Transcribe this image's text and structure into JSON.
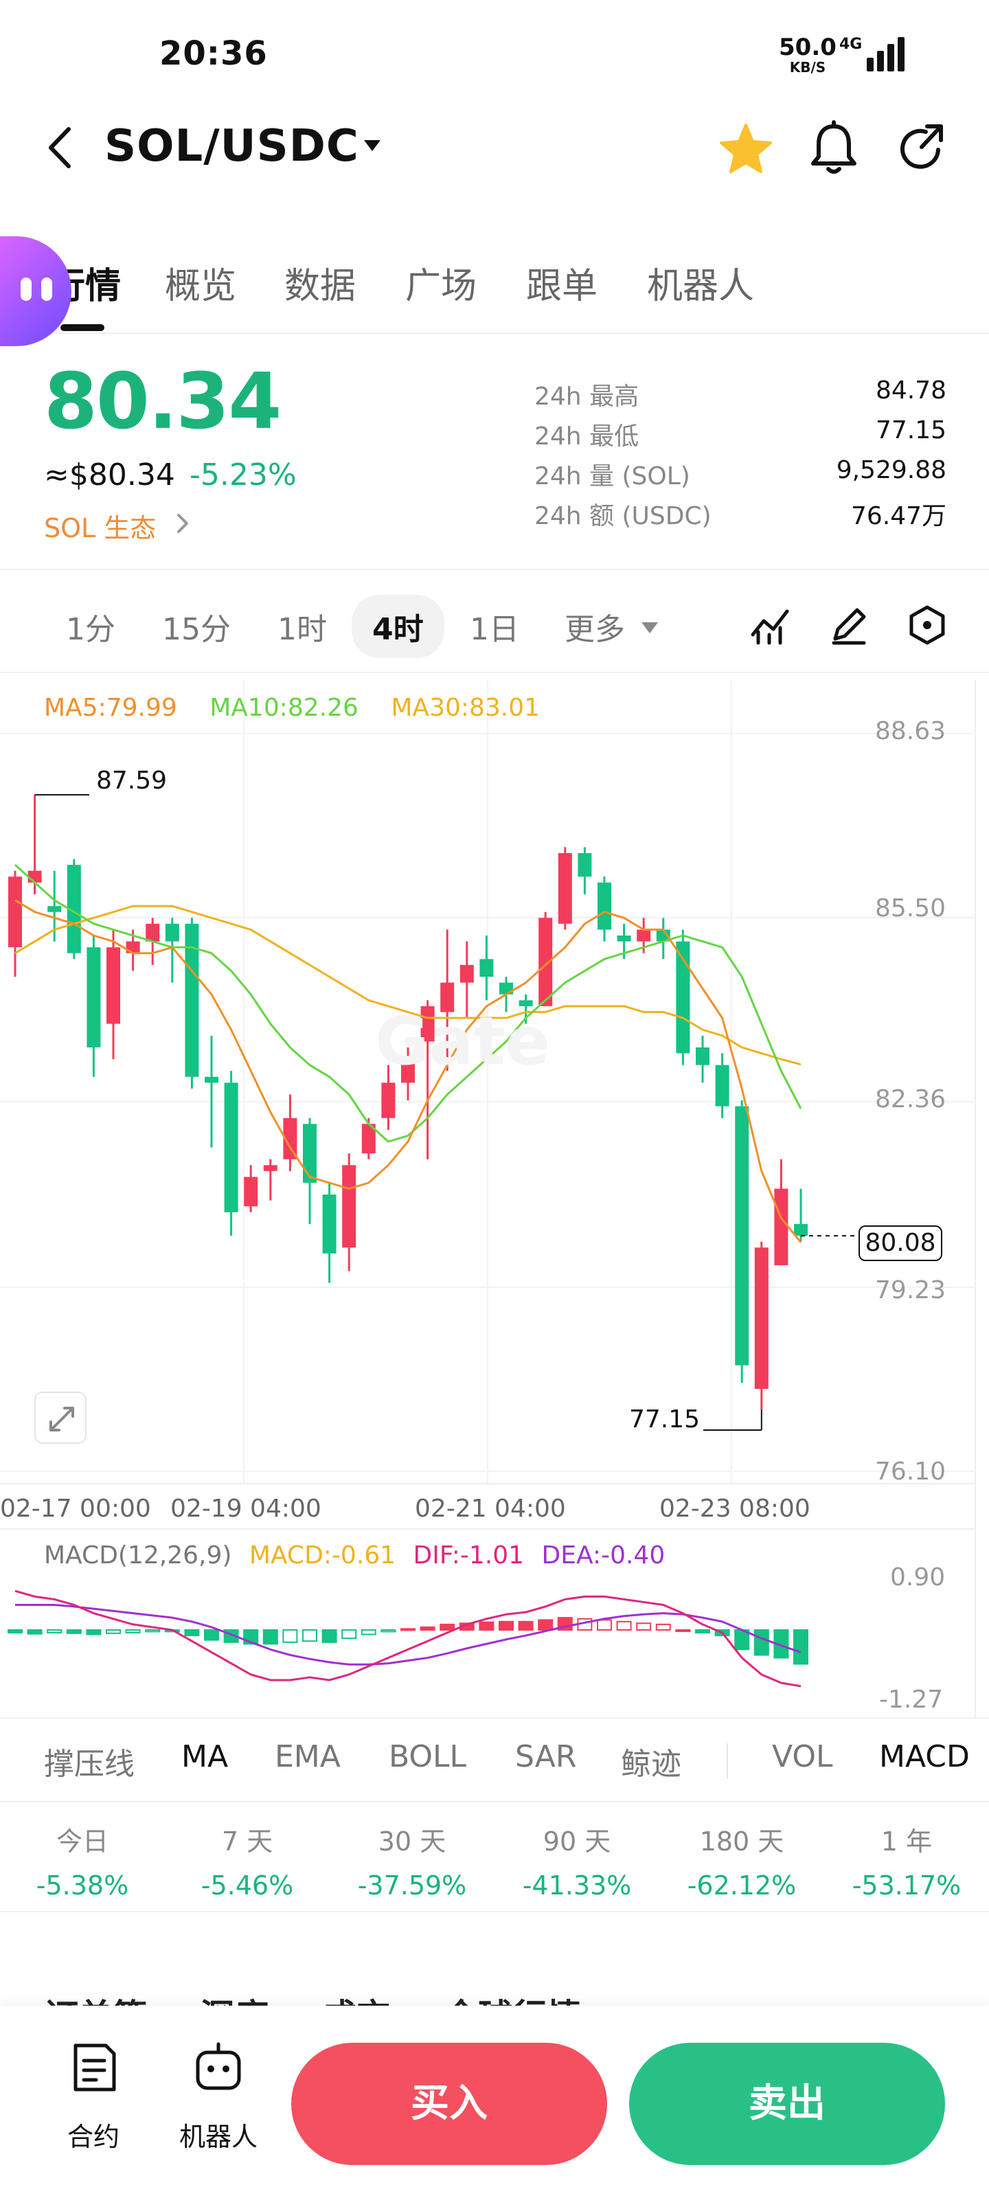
{
  "status": {
    "time": "20:36",
    "speed": "50.0",
    "speed_unit": "KB/S",
    "network": "4G"
  },
  "header": {
    "pair": "SOL/USDC",
    "favorited": true
  },
  "tabs": [
    "行情",
    "概览",
    "数据",
    "广场",
    "跟单",
    "机器人"
  ],
  "price": {
    "last": "80.34",
    "usd": "≈$80.34",
    "change": "-5.23%",
    "eco_link": "SOL 生态",
    "stats": [
      {
        "label": "24h  最高",
        "value": "84.78"
      },
      {
        "label": "24h  最低",
        "value": "77.15"
      },
      {
        "label": "24h  量 (SOL)",
        "value": "9,529.88"
      },
      {
        "label": "24h  额 (USDC)",
        "value": "76.47万"
      }
    ]
  },
  "timeframes": [
    "1分",
    "15分",
    "1时",
    "4时",
    "1日",
    "更多"
  ],
  "active_timeframe": "4时",
  "chart_legend": {
    "ma5": "MA5:79.99",
    "ma10": "MA10:82.26",
    "ma30": "MA30:83.01"
  },
  "macd_legend": {
    "params": "MACD(12,26,9)",
    "macd": "MACD:-0.61",
    "dif": "DIF:-1.01",
    "dea": "DEA:-0.40"
  },
  "current_price_tag": "80.08",
  "high_label": "87.59",
  "low_label": "77.15",
  "watermark": "Gate",
  "chart_data": {
    "type": "candlestick",
    "y_axis": [
      "88.63",
      "85.50",
      "82.36",
      "79.23",
      "76.10"
    ],
    "x_axis": [
      "02-17 00:00",
      "02-19 04:00",
      "02-21 04:00",
      "02-23 08:00"
    ],
    "macd_axis": [
      "0.90",
      "-1.27"
    ],
    "candles": [
      {
        "o": 85.0,
        "c": 86.2,
        "h": 86.3,
        "l": 84.5
      },
      {
        "o": 86.1,
        "c": 86.3,
        "h": 87.59,
        "l": 85.9
      },
      {
        "o": 85.7,
        "c": 85.6,
        "h": 86.3,
        "l": 85.1
      },
      {
        "o": 86.4,
        "c": 84.9,
        "h": 86.5,
        "l": 84.8
      },
      {
        "o": 85.0,
        "c": 83.3,
        "h": 85.2,
        "l": 82.8
      },
      {
        "o": 83.7,
        "c": 85.0,
        "h": 85.3,
        "l": 83.1
      },
      {
        "o": 84.9,
        "c": 85.1,
        "h": 85.3,
        "l": 84.6
      },
      {
        "o": 85.1,
        "c": 85.4,
        "h": 85.5,
        "l": 84.7
      },
      {
        "o": 85.4,
        "c": 85.1,
        "h": 85.5,
        "l": 84.4
      },
      {
        "o": 85.4,
        "c": 82.8,
        "h": 85.5,
        "l": 82.6
      },
      {
        "o": 82.8,
        "c": 82.7,
        "h": 83.5,
        "l": 81.6
      },
      {
        "o": 82.7,
        "c": 80.5,
        "h": 82.9,
        "l": 80.1
      },
      {
        "o": 80.6,
        "c": 81.1,
        "h": 81.3,
        "l": 80.5
      },
      {
        "o": 81.2,
        "c": 81.3,
        "h": 81.4,
        "l": 80.7
      },
      {
        "o": 81.4,
        "c": 82.1,
        "h": 82.5,
        "l": 81.2
      },
      {
        "o": 82.0,
        "c": 81.0,
        "h": 82.1,
        "l": 80.3
      },
      {
        "o": 80.8,
        "c": 79.8,
        "h": 81.0,
        "l": 79.3
      },
      {
        "o": 79.9,
        "c": 81.3,
        "h": 81.5,
        "l": 79.5
      },
      {
        "o": 81.5,
        "c": 82.0,
        "h": 82.1,
        "l": 81.4
      },
      {
        "o": 82.1,
        "c": 82.7,
        "h": 83.0,
        "l": 81.9
      },
      {
        "o": 82.7,
        "c": 83.1,
        "h": 83.3,
        "l": 82.4
      },
      {
        "o": 83.4,
        "c": 84.0,
        "h": 84.1,
        "l": 81.4
      },
      {
        "o": 83.9,
        "c": 84.4,
        "h": 85.3,
        "l": 82.9
      },
      {
        "o": 84.4,
        "c": 84.7,
        "h": 85.1,
        "l": 83.8
      },
      {
        "o": 84.8,
        "c": 84.5,
        "h": 85.2,
        "l": 84.1
      },
      {
        "o": 84.4,
        "c": 84.2,
        "h": 84.5,
        "l": 83.9
      },
      {
        "o": 84.1,
        "c": 84.0,
        "h": 84.2,
        "l": 83.7
      },
      {
        "o": 84.0,
        "c": 85.5,
        "h": 85.6,
        "l": 84.0
      },
      {
        "o": 85.4,
        "c": 86.6,
        "h": 86.7,
        "l": 85.3
      },
      {
        "o": 86.6,
        "c": 86.2,
        "h": 86.7,
        "l": 85.9
      },
      {
        "o": 86.1,
        "c": 85.3,
        "h": 86.2,
        "l": 85.1
      },
      {
        "o": 85.2,
        "c": 85.1,
        "h": 85.4,
        "l": 84.8
      },
      {
        "o": 85.1,
        "c": 85.3,
        "h": 85.5,
        "l": 84.9
      },
      {
        "o": 85.3,
        "c": 85.1,
        "h": 85.5,
        "l": 84.8
      },
      {
        "o": 85.1,
        "c": 83.2,
        "h": 85.3,
        "l": 83.0
      },
      {
        "o": 83.3,
        "c": 83.0,
        "h": 83.5,
        "l": 82.7
      },
      {
        "o": 83.0,
        "c": 82.3,
        "h": 83.2,
        "l": 82.1
      },
      {
        "o": 82.3,
        "c": 77.9,
        "h": 82.4,
        "l": 77.6
      },
      {
        "o": 77.5,
        "c": 79.9,
        "h": 80.0,
        "l": 77.15
      },
      {
        "o": 79.6,
        "c": 80.9,
        "h": 81.4,
        "l": 79.6
      },
      {
        "o": 80.3,
        "c": 80.1,
        "h": 80.9,
        "l": 80.0
      }
    ],
    "ma5": [
      85.8,
      85.6,
      85.5,
      85.4,
      85.2,
      85.1,
      84.9,
      84.9,
      85.0,
      84.6,
      84.2,
      83.6,
      82.9,
      82.2,
      81.6,
      81.1,
      81.0,
      80.9,
      81.0,
      81.3,
      81.7,
      82.4,
      83.0,
      83.6,
      84.0,
      84.2,
      84.4,
      84.7,
      85.0,
      85.4,
      85.6,
      85.5,
      85.3,
      85.3,
      84.8,
      84.3,
      83.8,
      82.6,
      81.2,
      80.4,
      79.99
    ],
    "ma10": [
      86.4,
      86.1,
      85.8,
      85.6,
      85.4,
      85.3,
      85.2,
      85.1,
      85.0,
      85.0,
      84.9,
      84.6,
      84.2,
      83.7,
      83.3,
      83.0,
      82.8,
      82.5,
      82.0,
      81.7,
      81.8,
      82.1,
      82.5,
      82.8,
      83.1,
      83.4,
      83.8,
      84.1,
      84.4,
      84.6,
      84.8,
      84.9,
      85.0,
      85.1,
      85.2,
      85.1,
      85.0,
      84.5,
      83.7,
      82.9,
      82.26
    ],
    "ma30": [
      84.9,
      85.1,
      85.3,
      85.4,
      85.5,
      85.6,
      85.7,
      85.7,
      85.7,
      85.6,
      85.5,
      85.4,
      85.3,
      85.1,
      84.9,
      84.7,
      84.5,
      84.3,
      84.1,
      84.0,
      83.9,
      83.8,
      83.8,
      83.8,
      83.8,
      83.8,
      83.9,
      83.9,
      84.0,
      84.0,
      84.0,
      84.0,
      83.9,
      83.9,
      83.8,
      83.6,
      83.5,
      83.3,
      83.2,
      83.1,
      83.01
    ],
    "macd_hist": [
      -0.05,
      -0.07,
      -0.05,
      -0.06,
      -0.08,
      -0.06,
      -0.05,
      -0.03,
      -0.03,
      -0.1,
      -0.18,
      -0.22,
      -0.25,
      -0.25,
      -0.22,
      -0.2,
      -0.22,
      -0.15,
      -0.08,
      -0.03,
      0.02,
      0.05,
      0.1,
      0.12,
      0.14,
      0.15,
      0.15,
      0.18,
      0.22,
      0.2,
      0.18,
      0.15,
      0.12,
      0.1,
      0.0,
      -0.05,
      -0.1,
      -0.35,
      -0.45,
      -0.5,
      -0.61
    ],
    "dif": [
      0.7,
      0.6,
      0.55,
      0.45,
      0.3,
      0.2,
      0.1,
      0.05,
      0.0,
      -0.2,
      -0.4,
      -0.6,
      -0.8,
      -0.9,
      -0.9,
      -0.85,
      -0.9,
      -0.8,
      -0.65,
      -0.5,
      -0.35,
      -0.2,
      -0.05,
      0.1,
      0.2,
      0.28,
      0.32,
      0.42,
      0.55,
      0.6,
      0.6,
      0.55,
      0.5,
      0.45,
      0.3,
      0.1,
      -0.05,
      -0.5,
      -0.8,
      -0.95,
      -1.01
    ],
    "dea": [
      0.45,
      0.45,
      0.45,
      0.42,
      0.38,
      0.34,
      0.3,
      0.26,
      0.22,
      0.15,
      0.05,
      -0.08,
      -0.22,
      -0.35,
      -0.45,
      -0.52,
      -0.58,
      -0.62,
      -0.62,
      -0.6,
      -0.55,
      -0.5,
      -0.42,
      -0.33,
      -0.25,
      -0.17,
      -0.1,
      -0.02,
      0.06,
      0.13,
      0.2,
      0.25,
      0.28,
      0.3,
      0.28,
      0.22,
      0.15,
      0.0,
      -0.15,
      -0.28,
      -0.4
    ]
  },
  "indicators": [
    "撑压线",
    "MA",
    "EMA",
    "BOLL",
    "SAR",
    "鲸迹",
    "VOL",
    "MACD"
  ],
  "active_indicator": "MA",
  "returns": [
    {
      "label": "今日",
      "value": "-5.38%"
    },
    {
      "label": "7 天",
      "value": "-5.46%"
    },
    {
      "label": "30 天",
      "value": "-37.59%"
    },
    {
      "label": "90 天",
      "value": "-41.33%"
    },
    {
      "label": "180 天",
      "value": "-62.12%"
    },
    {
      "label": "1 年",
      "value": "-53.17%"
    }
  ],
  "peek_tabs": [
    "订单簿",
    "深度",
    "成交",
    "全球行情"
  ],
  "bottom": {
    "contract": "合约",
    "robot": "机器人",
    "buy": "买入",
    "sell": "卖出"
  },
  "colors": {
    "up": "#f23c5a",
    "down": "#14c283",
    "ma5": "#f0902a",
    "ma10": "#66d443",
    "ma30": "#efb21c",
    "accent": "#1cb37b"
  }
}
